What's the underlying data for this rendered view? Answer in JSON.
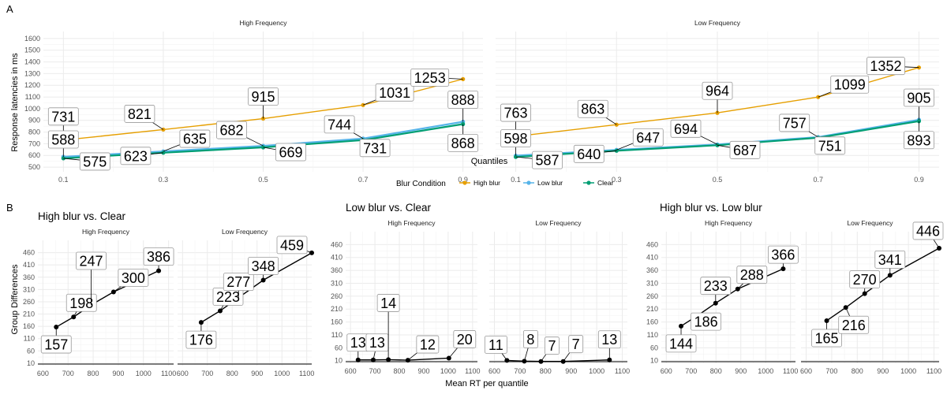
{
  "panel_labels": {
    "a": "A",
    "b": "B"
  },
  "legend": {
    "title": "Blur Condition",
    "items": [
      {
        "name": "High blur",
        "color": "#E69F00"
      },
      {
        "name": "Low blur",
        "color": "#56B4E9"
      },
      {
        "name": "Clear",
        "color": "#009E73"
      }
    ]
  },
  "chart_data": [
    {
      "type": "line",
      "id": "A",
      "title": "",
      "xlabel": "Quantiles",
      "ylabel": "Response latencies in ms",
      "x": [
        0.1,
        0.3,
        0.5,
        0.7,
        0.9
      ],
      "xticks": [
        "0.1",
        "0.3",
        "0.5",
        "0.7",
        "0.9"
      ],
      "xlim": [
        0.06,
        0.94
      ],
      "ylim": [
        460,
        1660
      ],
      "yticks": [
        500,
        600,
        700,
        800,
        900,
        1000,
        1100,
        1200,
        1300,
        1400,
        1500,
        1600
      ],
      "grid": true,
      "legend_position": "bottom",
      "facets": [
        {
          "title": "High Frequency",
          "series": [
            {
              "name": "High blur",
              "values": [
                731,
                821,
                915,
                1031,
                1253
              ]
            },
            {
              "name": "Low blur",
              "values": [
                588,
                635,
                682,
                744,
                888
              ]
            },
            {
              "name": "Clear",
              "values": [
                575,
                623,
                669,
                731,
                868
              ]
            }
          ]
        },
        {
          "title": "Low Frequency",
          "series": [
            {
              "name": "High blur",
              "values": [
                763,
                863,
                964,
                1099,
                1352
              ]
            },
            {
              "name": "Low blur",
              "values": [
                598,
                647,
                694,
                757,
                905
              ]
            },
            {
              "name": "Clear",
              "values": [
                587,
                640,
                687,
                751,
                893
              ]
            }
          ]
        }
      ]
    },
    {
      "type": "line",
      "id": "B1",
      "title": "High blur vs. Clear",
      "xlabel": "",
      "ylabel": "Group Differences",
      "xlim": [
        580,
        1120
      ],
      "ylim": [
        0,
        510
      ],
      "xticks": [
        600,
        700,
        800,
        900,
        1000,
        1100
      ],
      "yticks": [
        10,
        60,
        110,
        160,
        210,
        260,
        310,
        360,
        410,
        460
      ],
      "facets": [
        {
          "title": "High Frequency",
          "x": [
            653,
            722,
            792,
            881,
            1060.5
          ],
          "values": [
            157,
            198,
            247,
            300,
            386
          ]
        },
        {
          "title": "Low Frequency",
          "x": [
            675,
            751.5,
            825.5,
            925,
            1122.5
          ],
          "values": [
            176,
            223,
            277,
            348,
            459
          ]
        }
      ]
    },
    {
      "type": "line",
      "id": "B2",
      "title": "Low blur vs. Clear",
      "xlabel": "Mean RT per quantile",
      "ylabel": "",
      "xlim": [
        580,
        1120
      ],
      "ylim": [
        0,
        510
      ],
      "xticks": [
        600,
        700,
        800,
        900,
        1000,
        1100
      ],
      "yticks": [
        10,
        60,
        110,
        160,
        210,
        260,
        310,
        360,
        410,
        460
      ],
      "facets": [
        {
          "title": "High Frequency",
          "x": [
            631,
            693,
            755,
            835,
            1003
          ],
          "values": [
            13,
            13,
            14,
            12,
            20
          ]
        },
        {
          "title": "Low Frequency",
          "x": [
            649,
            717,
            782,
            869,
            1050
          ],
          "values": [
            11,
            8,
            7,
            7,
            13
          ]
        }
      ]
    },
    {
      "type": "line",
      "id": "B3",
      "title": "High blur vs. Low blur",
      "xlabel": "",
      "ylabel": "",
      "xlim": [
        580,
        1120
      ],
      "ylim": [
        0,
        510
      ],
      "xticks": [
        600,
        700,
        800,
        900,
        1000,
        1100
      ],
      "yticks": [
        10,
        60,
        110,
        160,
        210,
        260,
        310,
        360,
        410,
        460
      ],
      "facets": [
        {
          "title": "High Frequency",
          "x": [
            659.5,
            728,
            798.5,
            887.5,
            1070.5
          ],
          "values": [
            144,
            186,
            233,
            288,
            366
          ]
        },
        {
          "title": "Low Frequency",
          "x": [
            680.5,
            755,
            829,
            928,
            1128.5
          ],
          "values": [
            165,
            216,
            270,
            341,
            446
          ]
        }
      ]
    }
  ]
}
